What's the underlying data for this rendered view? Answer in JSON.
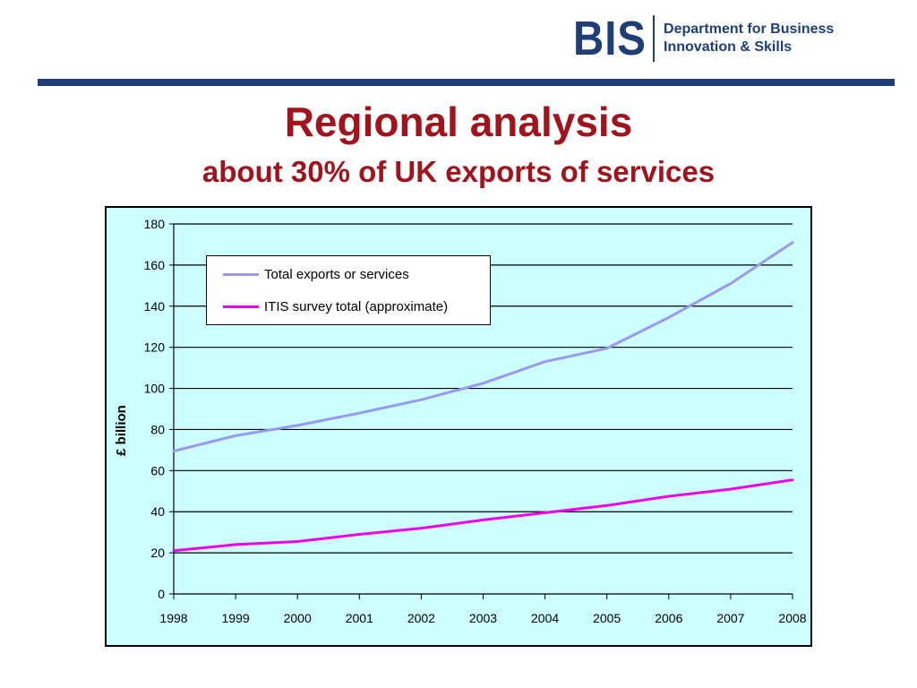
{
  "header": {
    "logo_mark": "BIS",
    "logo_line1": "Department for Business",
    "logo_line2": "Innovation & Skills",
    "brand_color": "#1f3e78"
  },
  "slide": {
    "title": "Regional analysis",
    "subtitle": "about 30% of UK exports of services",
    "title_color": "#a0141e"
  },
  "chart_data": {
    "type": "line",
    "x": [
      "1998",
      "1999",
      "2000",
      "2001",
      "2002",
      "2003",
      "2004",
      "2005",
      "2006",
      "2007",
      "2008"
    ],
    "ylabel": "£ billion",
    "xlabel": "",
    "ylim": [
      0,
      180
    ],
    "yticks": [
      0,
      20,
      40,
      60,
      80,
      100,
      120,
      140,
      160,
      180
    ],
    "grid": true,
    "legend_placement": "top-left",
    "background": "#ccffff",
    "series": [
      {
        "name": "Total exports or services",
        "color": "#9999ee",
        "values": [
          69.5,
          77,
          82,
          88,
          94.5,
          102.5,
          113,
          119.5,
          134.5,
          151,
          171
        ]
      },
      {
        "name": "ITIS survey total (approximate)",
        "color": "#ee00ee",
        "values": [
          21,
          24,
          25.5,
          29,
          32,
          36,
          39.5,
          43,
          47.5,
          51,
          55.5
        ]
      }
    ]
  }
}
